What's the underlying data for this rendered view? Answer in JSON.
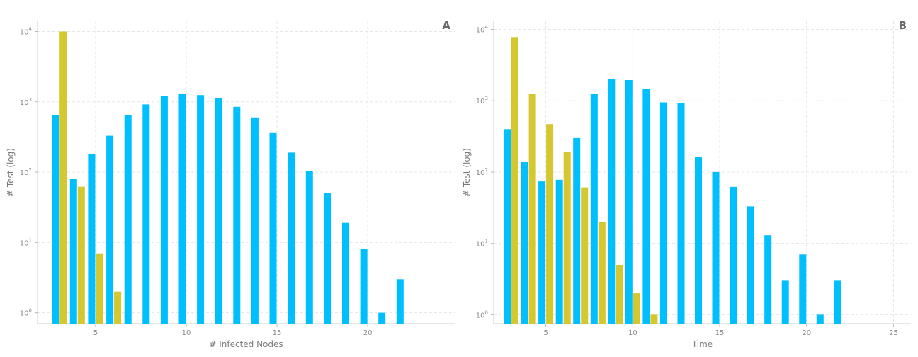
{
  "chart_data": [
    {
      "type": "bar",
      "panel_label": "A",
      "xlabel": "# Infected Nodes",
      "ylabel": "# Test (log)",
      "yscale": "log",
      "xlim": [
        1.8,
        24.8
      ],
      "ylim": [
        0.7,
        14000
      ],
      "xticks": [
        5,
        10,
        15,
        20
      ],
      "yticks": [
        {
          "value": 1,
          "base": "10",
          "exp": "0"
        },
        {
          "value": 10,
          "base": "10",
          "exp": "1"
        },
        {
          "value": 100,
          "base": "10",
          "exp": "2"
        },
        {
          "value": 1000,
          "base": "10",
          "exp": "3"
        },
        {
          "value": 10000,
          "base": "10",
          "exp": "4"
        }
      ],
      "grid": true,
      "series": [
        {
          "color": "#00bfff",
          "x": [
            3,
            4,
            5,
            6,
            7,
            8,
            9,
            10,
            11,
            12,
            13,
            14,
            15,
            16,
            17,
            18,
            19,
            20,
            21,
            22
          ],
          "values": [
            650,
            80,
            180,
            330,
            650,
            920,
            1200,
            1300,
            1250,
            1120,
            850,
            600,
            360,
            190,
            105,
            50,
            19,
            8,
            1,
            3
          ]
        },
        {
          "color": "#d4c72f",
          "x": [
            3,
            4,
            5,
            6
          ],
          "values": [
            10000,
            62,
            7,
            2
          ]
        }
      ]
    },
    {
      "type": "bar",
      "panel_label": "B",
      "xlabel": "Time",
      "ylabel": "# Test (log)",
      "yscale": "log",
      "xlim": [
        2,
        26
      ],
      "ylim": [
        0.75,
        13000
      ],
      "xticks": [
        5,
        10,
        15,
        20,
        25
      ],
      "yticks": [
        {
          "value": 1,
          "base": "10",
          "exp": "0"
        },
        {
          "value": 10,
          "base": "10",
          "exp": "1"
        },
        {
          "value": 100,
          "base": "10",
          "exp": "2"
        },
        {
          "value": 1000,
          "base": "10",
          "exp": "3"
        },
        {
          "value": 10000,
          "base": "10",
          "exp": "4"
        }
      ],
      "grid": true,
      "series": [
        {
          "color": "#00bfff",
          "x": [
            3,
            4,
            5,
            6,
            7,
            8,
            9,
            10,
            11,
            12,
            13,
            14,
            15,
            16,
            17,
            18,
            19,
            20,
            21,
            22,
            23
          ],
          "values": [
            400,
            140,
            74,
            78,
            300,
            1250,
            2000,
            1950,
            1480,
            950,
            920,
            165,
            100,
            62,
            33,
            13,
            3,
            7,
            1,
            3,
            0
          ]
        },
        {
          "color": "#d4c72f",
          "x": [
            3,
            4,
            5,
            6,
            7,
            8,
            9,
            10,
            11
          ],
          "values": [
            7800,
            1250,
            470,
            190,
            61,
            20,
            5,
            2,
            1
          ]
        }
      ]
    }
  ]
}
